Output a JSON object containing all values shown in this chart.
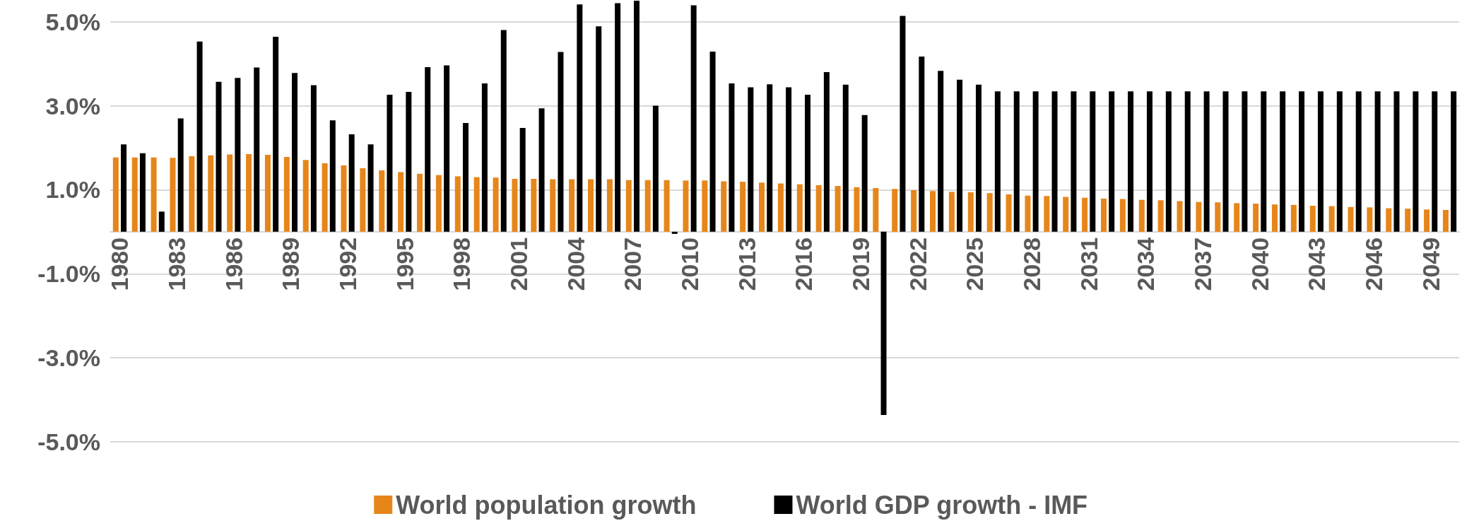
{
  "chart_data": {
    "type": "bar",
    "categories": [
      "1980",
      null,
      null,
      "1983",
      null,
      null,
      "1986",
      null,
      null,
      "1989",
      null,
      null,
      "1992",
      null,
      null,
      "1995",
      null,
      null,
      "1998",
      null,
      null,
      "2001",
      null,
      null,
      "2004",
      null,
      null,
      "2007",
      null,
      null,
      "2010",
      null,
      null,
      "2013",
      null,
      null,
      "2016",
      null,
      null,
      "2019",
      null,
      null,
      "2022",
      null,
      null,
      "2025",
      null,
      null,
      "2028",
      null,
      null,
      "2031",
      null,
      null,
      "2034",
      null,
      null,
      "2037",
      null,
      null,
      "2040",
      null,
      null,
      "2043",
      null,
      null,
      "2046",
      null,
      null,
      "2049",
      null
    ],
    "series": [
      {
        "name": "World population growth",
        "color": "#e6861a",
        "values": [
          1.77,
          1.77,
          1.77,
          1.76,
          1.8,
          1.82,
          1.84,
          1.85,
          1.83,
          1.78,
          1.71,
          1.63,
          1.58,
          1.51,
          1.46,
          1.42,
          1.38,
          1.35,
          1.32,
          1.3,
          1.29,
          1.26,
          1.26,
          1.25,
          1.25,
          1.25,
          1.25,
          1.23,
          1.23,
          1.23,
          1.22,
          1.22,
          1.2,
          1.19,
          1.17,
          1.15,
          1.13,
          1.11,
          1.09,
          1.06,
          1.04,
          1.02,
          0.99,
          0.97,
          0.95,
          0.94,
          0.92,
          0.89,
          0.86,
          0.85,
          0.83,
          0.81,
          0.79,
          0.78,
          0.76,
          0.75,
          0.73,
          0.71,
          0.7,
          0.68,
          0.67,
          0.65,
          0.64,
          0.62,
          0.61,
          0.59,
          0.58,
          0.56,
          0.55,
          0.53,
          0.52
        ]
      },
      {
        "name": "World GDP growth - IMF",
        "color": "#000000",
        "values": [
          2.08,
          1.87,
          0.48,
          2.7,
          4.53,
          3.57,
          3.66,
          3.91,
          4.64,
          3.78,
          3.49,
          2.65,
          2.32,
          2.08,
          3.26,
          3.33,
          3.92,
          3.96,
          2.59,
          3.53,
          4.8,
          2.47,
          2.94,
          4.28,
          5.41,
          4.89,
          5.44,
          5.5,
          3.0,
          -0.05,
          5.39,
          4.29,
          3.53,
          3.44,
          3.51,
          3.44,
          3.26,
          3.8,
          3.5,
          2.78,
          -4.36,
          5.14,
          4.17,
          3.83,
          3.62,
          3.5,
          3.34,
          3.34,
          3.34,
          3.34,
          3.34,
          3.34,
          3.34,
          3.34,
          3.34,
          3.34,
          3.34,
          3.34,
          3.34,
          3.34,
          3.34,
          3.34,
          3.34,
          3.34,
          3.34,
          3.34,
          3.34,
          3.34,
          3.34,
          3.34,
          3.34
        ]
      }
    ],
    "ylim": [
      -5,
      5.5
    ],
    "yticks": [
      {
        "value": -5,
        "label": "-5.0%"
      },
      {
        "value": -3,
        "label": "-3.0%"
      },
      {
        "value": -1,
        "label": "-1.0%"
      },
      {
        "value": 1,
        "label": "1.0%"
      },
      {
        "value": 3,
        "label": "3.0%"
      },
      {
        "value": 5,
        "label": "5.0%"
      }
    ],
    "grid": "y",
    "legend": "bottom"
  }
}
